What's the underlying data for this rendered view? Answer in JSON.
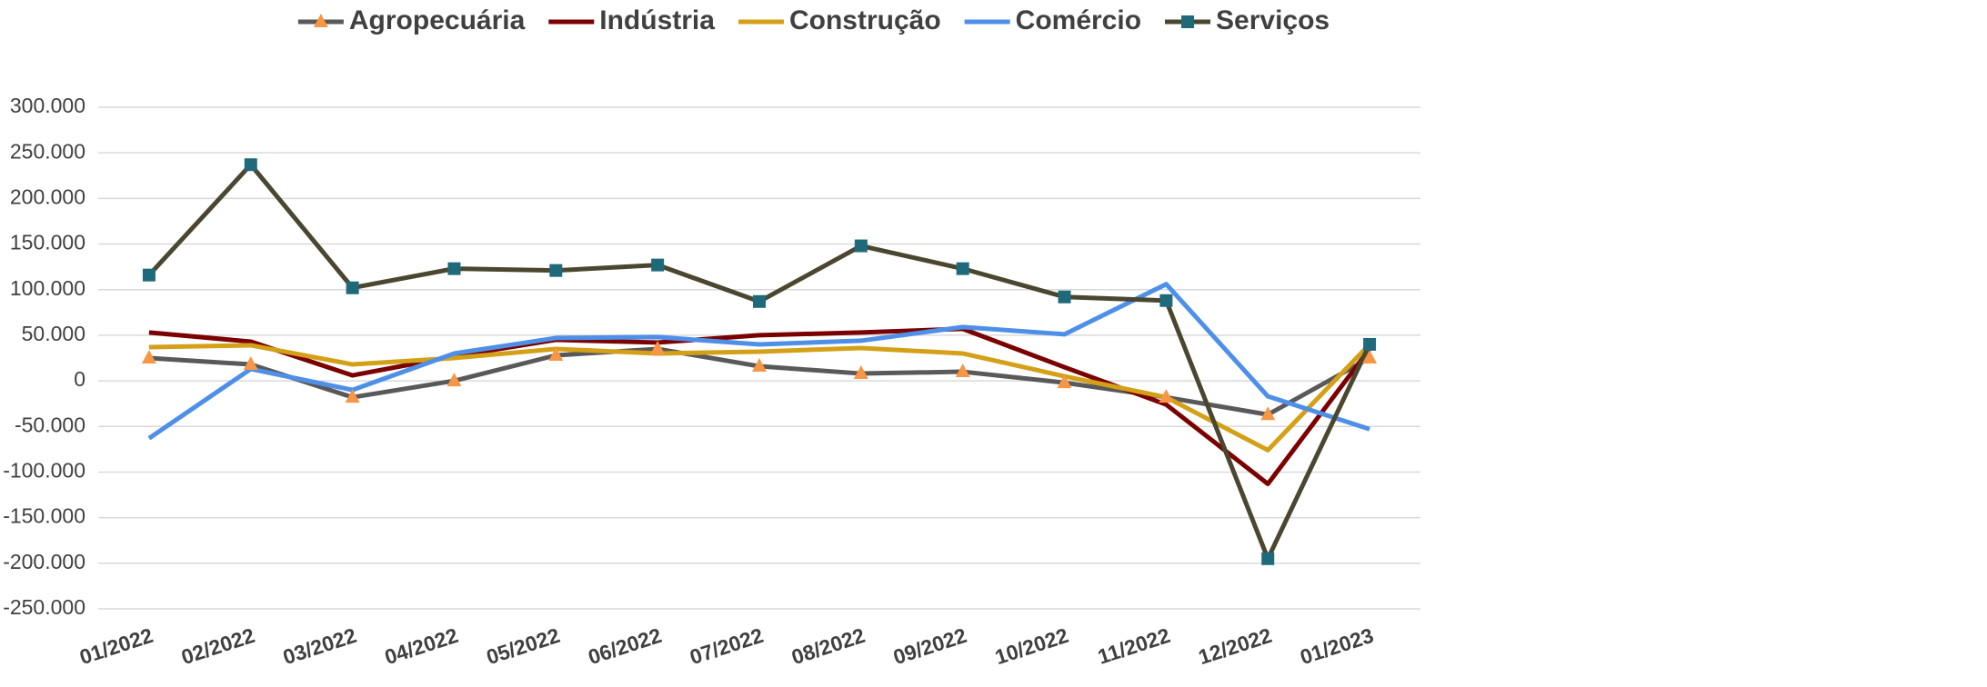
{
  "chart_data": {
    "type": "line",
    "categories": [
      "01/2022",
      "02/2022",
      "03/2022",
      "04/2022",
      "05/2022",
      "06/2022",
      "07/2022",
      "08/2022",
      "09/2022",
      "10/2022",
      "11/2022",
      "12/2022",
      "01/2023"
    ],
    "series": [
      {
        "name": "Agropecuária",
        "color": "#595959",
        "marker": "triangle",
        "marker_color": "#f79646",
        "values": [
          25000,
          18000,
          -18000,
          0,
          28000,
          35000,
          16000,
          8000,
          10000,
          -2000,
          -18000,
          -37000,
          25000
        ]
      },
      {
        "name": "Indústria",
        "color": "#7b0000",
        "values": [
          53000,
          43000,
          6000,
          27000,
          45000,
          42000,
          50000,
          53000,
          57000,
          15000,
          -26000,
          -113000,
          35000
        ]
      },
      {
        "name": "Construção",
        "color": "#d4a017",
        "values": [
          37000,
          39000,
          18000,
          25000,
          35000,
          30000,
          32000,
          36000,
          30000,
          5000,
          -18000,
          -76000,
          40000
        ]
      },
      {
        "name": "Comércio",
        "color": "#4e8fe8",
        "values": [
          -63000,
          13000,
          -10000,
          30000,
          47000,
          48000,
          40000,
          44000,
          59000,
          51000,
          106000,
          -17000,
          -53000
        ]
      },
      {
        "name": "Serviços",
        "color": "#4b4630",
        "marker": "square",
        "marker_color": "#1f6a7a",
        "values": [
          116000,
          237000,
          102000,
          123000,
          121000,
          127000,
          87000,
          148000,
          123000,
          92000,
          88000,
          -195000,
          40000
        ]
      }
    ],
    "ylim": [
      -250000,
      300000
    ],
    "yticks": [
      {
        "value": -250000,
        "label": "-250.000"
      },
      {
        "value": -200000,
        "label": "-200.000"
      },
      {
        "value": -150000,
        "label": "-150.000"
      },
      {
        "value": -100000,
        "label": "-100.000"
      },
      {
        "value": -50000,
        "label": "-50.000"
      },
      0,
      {
        "value": 50000,
        "label": "50.000"
      },
      {
        "value": 100000,
        "label": "100.000"
      },
      {
        "value": 150000,
        "label": "150.000"
      },
      {
        "value": 200000,
        "label": "200.000"
      },
      {
        "value": 250000,
        "label": "250.000"
      },
      {
        "value": 300000,
        "label": "300.000"
      }
    ],
    "grid": true,
    "legend": "top"
  }
}
